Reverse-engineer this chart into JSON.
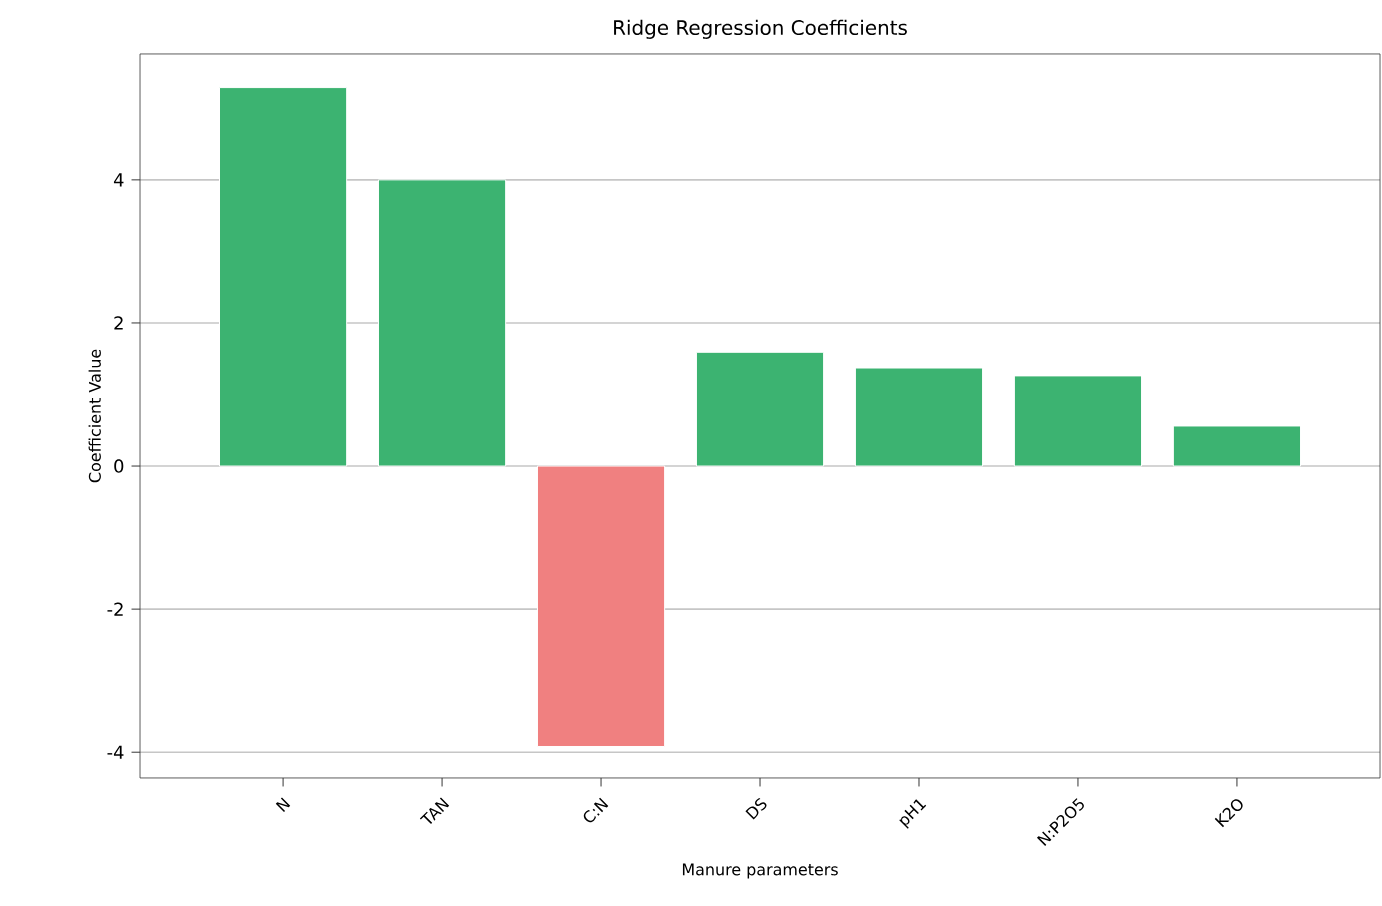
{
  "chart_data": {
    "type": "bar",
    "title": "Ridge Regression Coefficients",
    "xlabel": "Manure parameters",
    "ylabel": "Coefficient Value",
    "categories": [
      "N",
      "TAN",
      "C:N",
      "DS",
      "pH1",
      "N:P2O5",
      "K2O"
    ],
    "values": [
      5.29,
      4.0,
      -3.92,
      1.59,
      1.37,
      1.26,
      0.56
    ],
    "colors": [
      "#3cb371",
      "#3cb371",
      "#f08080",
      "#3cb371",
      "#3cb371",
      "#3cb371",
      "#3cb371"
    ],
    "ylim": [
      -4.36,
      5.76
    ],
    "yticks": [
      -4,
      -2,
      0,
      2,
      4
    ],
    "grid": "y"
  }
}
